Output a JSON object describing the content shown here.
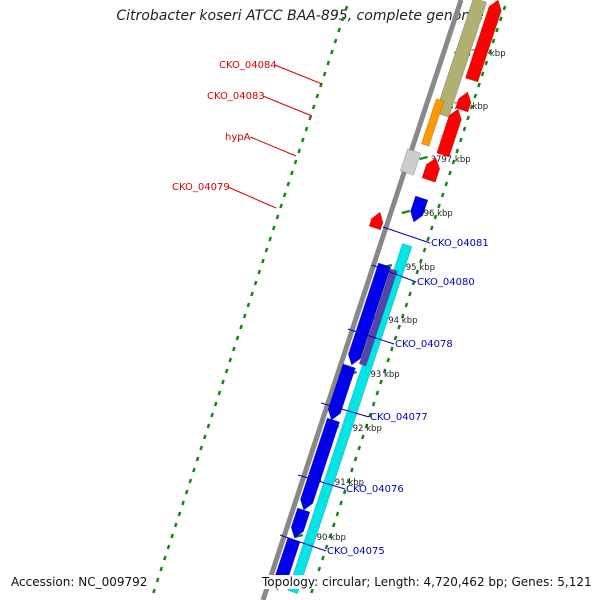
{
  "title": "Citrobacter koseri ATCC BAA-895, complete genome",
  "footer": {
    "accession": "Accession: NC_009792",
    "summary": "Topology: circular; Length: 4,720,462 bp; Genes: 5,121"
  },
  "colors": {
    "forward_cds": "#ff0000",
    "reverse_cds": "#0000ee",
    "forward_feature": "#b0b070",
    "forward_orange": "#ff9900",
    "forward_gray": "#cccccc",
    "reverse_feature": "#00e5e5",
    "reverse_purple": "#5544aa",
    "backbone": "#888888",
    "ticks": "#118811",
    "label_forward": "#dd0000",
    "label_reverse": "#0000bb"
  },
  "scale": {
    "unit": "kbp",
    "ticks": [
      "3790 kbp",
      "3791 kbp",
      "3792 kbp",
      "3793 kbp",
      "3794 kbp",
      "3795 kbp",
      "3796 kbp",
      "3797 kbp",
      "3798 kbp",
      "3799 kbp"
    ]
  },
  "genes_forward": [
    "CKO_04084",
    "CKO_04083",
    "hypA",
    "CKO_04079"
  ],
  "genes_reverse": [
    "CKO_04081",
    "CKO_04080",
    "CKO_04078",
    "CKO_04077",
    "CKO_04076",
    "CKO_04075"
  ]
}
